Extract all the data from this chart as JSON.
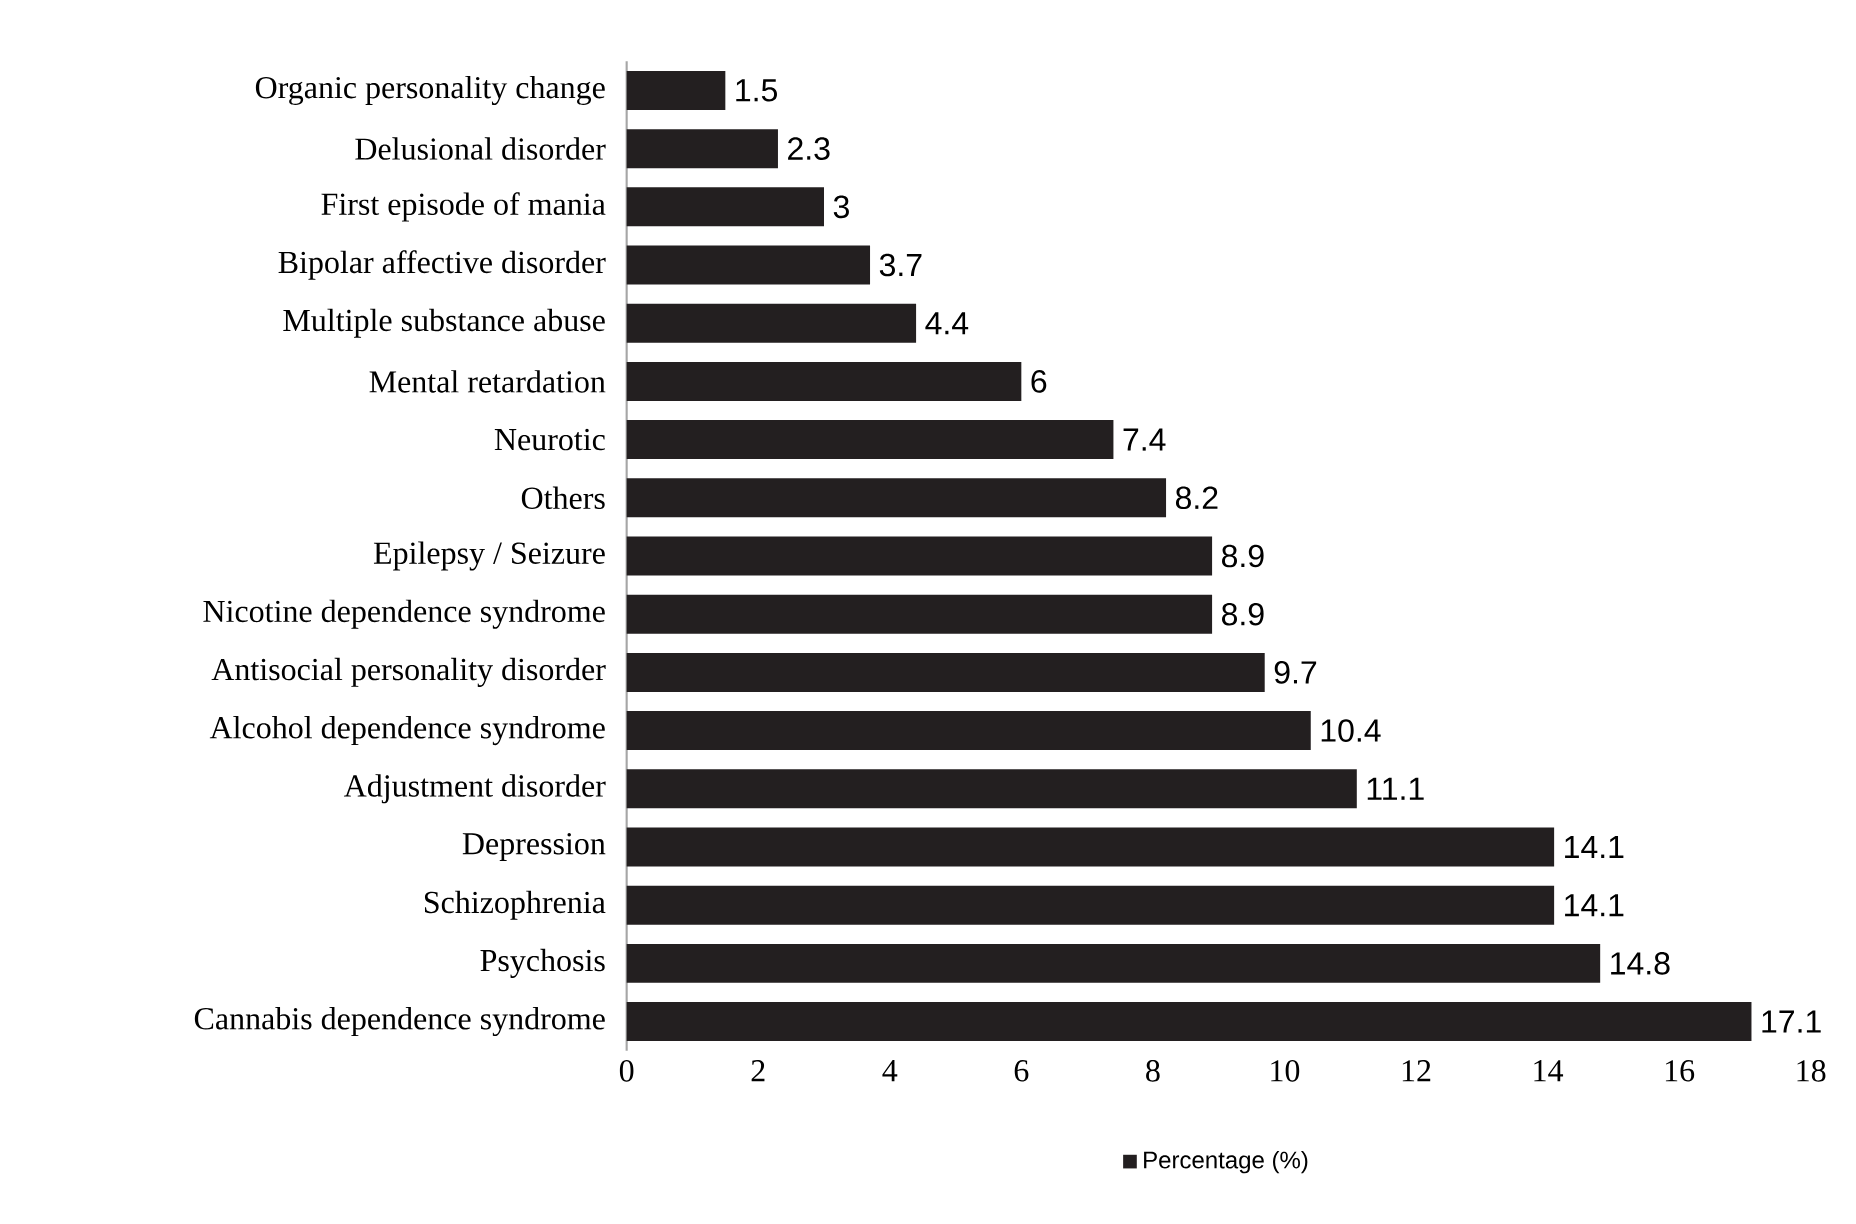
{
  "chart_data": {
    "type": "bar",
    "orientation": "horizontal",
    "categories": [
      "Organic personality change",
      "Delusional disorder",
      "First episode of mania",
      "Bipolar affective disorder",
      "Multiple substance abuse",
      "Mental retardation",
      "Neurotic",
      "Others",
      "Epilepsy / Seizure",
      "Nicotine dependence syndrome",
      "Antisocial personality disorder",
      "Alcohol dependence syndrome",
      "Adjustment disorder",
      "Depression",
      "Schizophrenia",
      "Psychosis",
      "Cannabis dependence syndrome"
    ],
    "series": [
      {
        "name": "Percentage (%)",
        "color": "#231f20",
        "values": [
          1.5,
          2.3,
          3,
          3.7,
          4.4,
          6,
          7.4,
          8.2,
          8.9,
          8.9,
          9.7,
          10.4,
          11.1,
          14.1,
          14.1,
          14.8,
          17.1
        ]
      }
    ],
    "xlim": [
      0,
      18
    ],
    "xticks": [
      0,
      2,
      4,
      6,
      8,
      10,
      12,
      14,
      16,
      18
    ],
    "data_labels": true,
    "legend": "bottom",
    "grid": false
  }
}
